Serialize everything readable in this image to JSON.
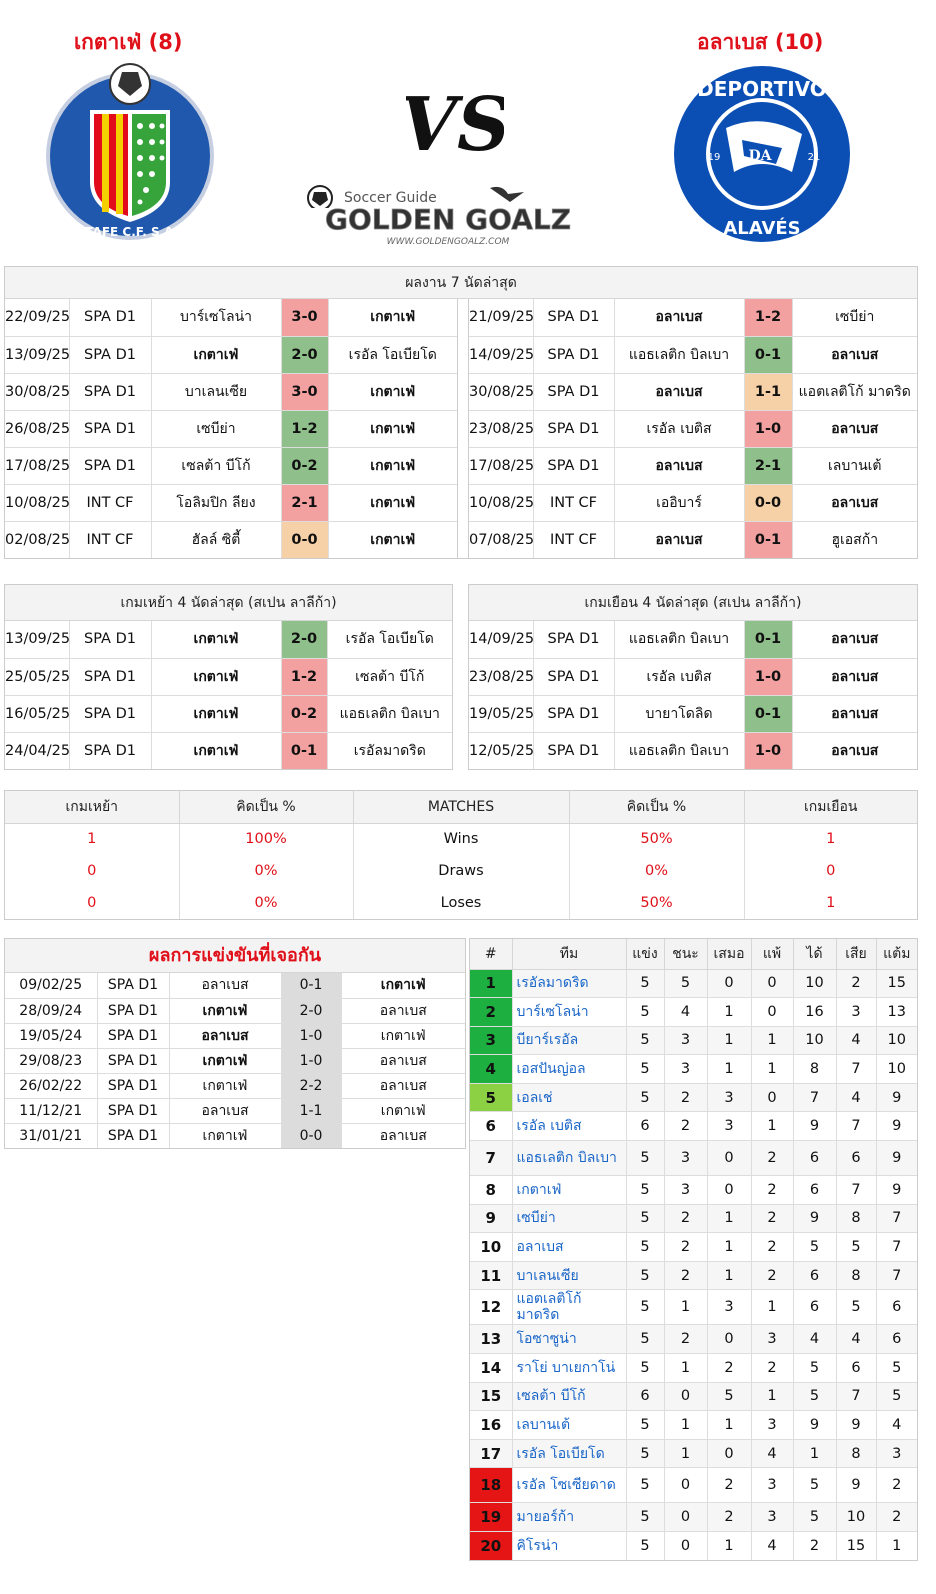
{
  "header": {
    "home_team": "เกตาเฟ่ (8)",
    "away_team": "อลาเบส (10)",
    "vs": "VS",
    "brand_sub": "Soccer Guide",
    "brand_main": "GOLDEN GOALZ",
    "brand_url": "WWW.GOLDENGOALZ.COM",
    "home_logo_text": "GETAFE C.F. S.A.D.",
    "away_logo_top": "DEPORTIVO",
    "away_logo_bottom": "ALAVÉS",
    "away_logo_left": "19",
    "away_logo_right": "21",
    "away_logo_mono": "DA"
  },
  "colors": {
    "win": "#8fbf8a",
    "loss": "#f3a0a0",
    "draw": "#f6d0a6",
    "accent_red": "#e0101a",
    "link_blue": "#1a66c8"
  },
  "last7": {
    "title": "ผลงาน 7 นัดล่าสุด",
    "home": [
      {
        "date": "22/09/25",
        "comp": "SPA D1",
        "t1": "บาร์เซโลน่า",
        "score": "3-0",
        "t2": "เกตาเฟ่",
        "res": "L",
        "b1": false,
        "b2": true
      },
      {
        "date": "13/09/25",
        "comp": "SPA D1",
        "t1": "เกตาเฟ่",
        "score": "2-0",
        "t2": "เรอัล โอเบียโด",
        "res": "W",
        "b1": true,
        "b2": false
      },
      {
        "date": "30/08/25",
        "comp": "SPA D1",
        "t1": "บาเลนเซีย",
        "score": "3-0",
        "t2": "เกตาเฟ่",
        "res": "L",
        "b1": false,
        "b2": true
      },
      {
        "date": "26/08/25",
        "comp": "SPA D1",
        "t1": "เซบีย่า",
        "score": "1-2",
        "t2": "เกตาเฟ่",
        "res": "W",
        "b1": false,
        "b2": true
      },
      {
        "date": "17/08/25",
        "comp": "SPA D1",
        "t1": "เซลต้า บีโก้",
        "score": "0-2",
        "t2": "เกตาเฟ่",
        "res": "W",
        "b1": false,
        "b2": true
      },
      {
        "date": "10/08/25",
        "comp": "INT CF",
        "t1": "โอลิมปิก ลียง",
        "score": "2-1",
        "t2": "เกตาเฟ่",
        "res": "L",
        "b1": false,
        "b2": true
      },
      {
        "date": "02/08/25",
        "comp": "INT CF",
        "t1": "ฮัลล์ ซิตี้",
        "score": "0-0",
        "t2": "เกตาเฟ่",
        "res": "D",
        "b1": false,
        "b2": true
      }
    ],
    "away": [
      {
        "date": "21/09/25",
        "comp": "SPA D1",
        "t1": "อลาเบส",
        "score": "1-2",
        "t2": "เซบีย่า",
        "res": "L",
        "b1": true,
        "b2": false
      },
      {
        "date": "14/09/25",
        "comp": "SPA D1",
        "t1": "แอธเลติก บิลเบา",
        "score": "0-1",
        "t2": "อลาเบส",
        "res": "W",
        "b1": false,
        "b2": true
      },
      {
        "date": "30/08/25",
        "comp": "SPA D1",
        "t1": "อลาเบส",
        "score": "1-1",
        "t2": "แอตเลติโก้ มาดริด",
        "res": "D",
        "b1": true,
        "b2": false
      },
      {
        "date": "23/08/25",
        "comp": "SPA D1",
        "t1": "เรอัล เบติส",
        "score": "1-0",
        "t2": "อลาเบส",
        "res": "L",
        "b1": false,
        "b2": true
      },
      {
        "date": "17/08/25",
        "comp": "SPA D1",
        "t1": "อลาเบส",
        "score": "2-1",
        "t2": "เลบานเต้",
        "res": "W",
        "b1": true,
        "b2": false
      },
      {
        "date": "10/08/25",
        "comp": "INT CF",
        "t1": "เออิบาร์",
        "score": "0-0",
        "t2": "อลาเบส",
        "res": "D",
        "b1": false,
        "b2": true
      },
      {
        "date": "07/08/25",
        "comp": "INT CF",
        "t1": "อลาเบส",
        "score": "0-1",
        "t2": "ฮูเอสก้า",
        "res": "L",
        "b1": true,
        "b2": false
      }
    ]
  },
  "last4": {
    "home_title": "เกมเหย้า 4 นัดล่าสุด (สเปน ลาลีก้า)",
    "away_title": "เกมเยือน 4 นัดล่าสุด (สเปน ลาลีก้า)",
    "home": [
      {
        "date": "13/09/25",
        "comp": "SPA D1",
        "t1": "เกตาเฟ่",
        "score": "2-0",
        "t2": "เรอัล โอเบียโด",
        "res": "W",
        "b1": true,
        "b2": false
      },
      {
        "date": "25/05/25",
        "comp": "SPA D1",
        "t1": "เกตาเฟ่",
        "score": "1-2",
        "t2": "เซลต้า บีโก้",
        "res": "L",
        "b1": true,
        "b2": false
      },
      {
        "date": "16/05/25",
        "comp": "SPA D1",
        "t1": "เกตาเฟ่",
        "score": "0-2",
        "t2": "แอธเลติก บิลเบา",
        "res": "L",
        "b1": true,
        "b2": false
      },
      {
        "date": "24/04/25",
        "comp": "SPA D1",
        "t1": "เกตาเฟ่",
        "score": "0-1",
        "t2": "เรอัลมาดริด",
        "res": "L",
        "b1": true,
        "b2": false
      }
    ],
    "away": [
      {
        "date": "14/09/25",
        "comp": "SPA D1",
        "t1": "แอธเลติก บิลเบา",
        "score": "0-1",
        "t2": "อลาเบส",
        "res": "W",
        "b1": false,
        "b2": true
      },
      {
        "date": "23/08/25",
        "comp": "SPA D1",
        "t1": "เรอัล เบติส",
        "score": "1-0",
        "t2": "อลาเบส",
        "res": "L",
        "b1": false,
        "b2": true
      },
      {
        "date": "19/05/25",
        "comp": "SPA D1",
        "t1": "บายาโดลิด",
        "score": "0-1",
        "t2": "อลาเบส",
        "res": "W",
        "b1": false,
        "b2": true
      },
      {
        "date": "12/05/25",
        "comp": "SPA D1",
        "t1": "แอธเลติก บิลเบา",
        "score": "1-0",
        "t2": "อลาเบส",
        "res": "L",
        "b1": false,
        "b2": true
      }
    ]
  },
  "summary": {
    "headers": [
      "เกมเหย้า",
      "คิดเป็น %",
      "MATCHES",
      "คิดเป็น %",
      "เกมเยือน"
    ],
    "rows": [
      {
        "home": "1",
        "home_pct": "100%",
        "label": "Wins",
        "away_pct": "50%",
        "away": "1"
      },
      {
        "home": "0",
        "home_pct": "0%",
        "label": "Draws",
        "away_pct": "0%",
        "away": "0"
      },
      {
        "home": "0",
        "home_pct": "0%",
        "label": "Loses",
        "away_pct": "50%",
        "away": "1"
      }
    ]
  },
  "h2h": {
    "title": "ผลการแข่งขันที่เจอกัน",
    "rows": [
      {
        "date": "09/02/25",
        "comp": "SPA D1",
        "t1": "อลาเบส",
        "score": "0-1",
        "t2": "เกตาเฟ่",
        "b1": false,
        "b2": true
      },
      {
        "date": "28/09/24",
        "comp": "SPA D1",
        "t1": "เกตาเฟ่",
        "score": "2-0",
        "t2": "อลาเบส",
        "b1": true,
        "b2": false
      },
      {
        "date": "19/05/24",
        "comp": "SPA D1",
        "t1": "อลาเบส",
        "score": "1-0",
        "t2": "เกตาเฟ่",
        "b1": true,
        "b2": false
      },
      {
        "date": "29/08/23",
        "comp": "SPA D1",
        "t1": "เกตาเฟ่",
        "score": "1-0",
        "t2": "อลาเบส",
        "b1": true,
        "b2": false
      },
      {
        "date": "26/02/22",
        "comp": "SPA D1",
        "t1": "เกตาเฟ่",
        "score": "2-2",
        "t2": "อลาเบส",
        "b1": false,
        "b2": false
      },
      {
        "date": "11/12/21",
        "comp": "SPA D1",
        "t1": "อลาเบส",
        "score": "1-1",
        "t2": "เกตาเฟ่",
        "b1": false,
        "b2": false
      },
      {
        "date": "31/01/21",
        "comp": "SPA D1",
        "t1": "เกตาเฟ่",
        "score": "0-0",
        "t2": "อลาเบส",
        "b1": false,
        "b2": false
      }
    ]
  },
  "standings": {
    "headers": [
      "#",
      "ทีม",
      "แข่ง",
      "ชนะ",
      "เสมอ",
      "แพ้",
      "ได้",
      "เสีย",
      "แต้ม"
    ],
    "rows": [
      {
        "pos": "1",
        "team": "เรอัลมาดริด",
        "p": "5",
        "w": "5",
        "d": "0",
        "l": "0",
        "gf": "10",
        "ga": "2",
        "pts": "15",
        "zone": "g1"
      },
      {
        "pos": "2",
        "team": "บาร์เซโลน่า",
        "p": "5",
        "w": "4",
        "d": "1",
        "l": "0",
        "gf": "16",
        "ga": "3",
        "pts": "13",
        "zone": "g1"
      },
      {
        "pos": "3",
        "team": "บียาร์เรอัล",
        "p": "5",
        "w": "3",
        "d": "1",
        "l": "1",
        "gf": "10",
        "ga": "4",
        "pts": "10",
        "zone": "g1"
      },
      {
        "pos": "4",
        "team": "เอสปันญ่อล",
        "p": "5",
        "w": "3",
        "d": "1",
        "l": "1",
        "gf": "8",
        "ga": "7",
        "pts": "10",
        "zone": "g1"
      },
      {
        "pos": "5",
        "team": "เอลเช่",
        "p": "5",
        "w": "2",
        "d": "3",
        "l": "0",
        "gf": "7",
        "ga": "4",
        "pts": "9",
        "zone": "g2"
      },
      {
        "pos": "6",
        "team": "เรอัล เบติส",
        "p": "6",
        "w": "2",
        "d": "3",
        "l": "1",
        "gf": "9",
        "ga": "7",
        "pts": "9",
        "zone": ""
      },
      {
        "pos": "7",
        "team": "แอธเลติก บิลเบา",
        "p": "5",
        "w": "3",
        "d": "0",
        "l": "2",
        "gf": "6",
        "ga": "6",
        "pts": "9",
        "zone": ""
      },
      {
        "pos": "8",
        "team": "เกตาเฟ่",
        "p": "5",
        "w": "3",
        "d": "0",
        "l": "2",
        "gf": "6",
        "ga": "7",
        "pts": "9",
        "zone": ""
      },
      {
        "pos": "9",
        "team": "เซบีย่า",
        "p": "5",
        "w": "2",
        "d": "1",
        "l": "2",
        "gf": "9",
        "ga": "8",
        "pts": "7",
        "zone": ""
      },
      {
        "pos": "10",
        "team": "อลาเบส",
        "p": "5",
        "w": "2",
        "d": "1",
        "l": "2",
        "gf": "5",
        "ga": "5",
        "pts": "7",
        "zone": ""
      },
      {
        "pos": "11",
        "team": "บาเลนเซีย",
        "p": "5",
        "w": "2",
        "d": "1",
        "l": "2",
        "gf": "6",
        "ga": "8",
        "pts": "7",
        "zone": ""
      },
      {
        "pos": "12",
        "team": "แอตเลติโก้ มาดริด",
        "p": "5",
        "w": "1",
        "d": "3",
        "l": "1",
        "gf": "6",
        "ga": "5",
        "pts": "6",
        "zone": ""
      },
      {
        "pos": "13",
        "team": "โอซาซูน่า",
        "p": "5",
        "w": "2",
        "d": "0",
        "l": "3",
        "gf": "4",
        "ga": "4",
        "pts": "6",
        "zone": ""
      },
      {
        "pos": "14",
        "team": "ราโย่ บาเยกาโน่",
        "p": "5",
        "w": "1",
        "d": "2",
        "l": "2",
        "gf": "5",
        "ga": "6",
        "pts": "5",
        "zone": ""
      },
      {
        "pos": "15",
        "team": "เซลต้า บีโก้",
        "p": "6",
        "w": "0",
        "d": "5",
        "l": "1",
        "gf": "5",
        "ga": "7",
        "pts": "5",
        "zone": ""
      },
      {
        "pos": "16",
        "team": "เลบานเต้",
        "p": "5",
        "w": "1",
        "d": "1",
        "l": "3",
        "gf": "9",
        "ga": "9",
        "pts": "4",
        "zone": ""
      },
      {
        "pos": "17",
        "team": "เรอัล โอเบียโด",
        "p": "5",
        "w": "1",
        "d": "0",
        "l": "4",
        "gf": "1",
        "ga": "8",
        "pts": "3",
        "zone": ""
      },
      {
        "pos": "18",
        "team": "เรอัล โซเซียดาด",
        "p": "5",
        "w": "0",
        "d": "2",
        "l": "3",
        "gf": "5",
        "ga": "9",
        "pts": "2",
        "zone": "r"
      },
      {
        "pos": "19",
        "team": "มายอร์ก้า",
        "p": "5",
        "w": "0",
        "d": "2",
        "l": "3",
        "gf": "5",
        "ga": "10",
        "pts": "2",
        "zone": "r"
      },
      {
        "pos": "20",
        "team": "คิโรน่า",
        "p": "5",
        "w": "0",
        "d": "1",
        "l": "4",
        "gf": "2",
        "ga": "15",
        "pts": "1",
        "zone": "r"
      }
    ]
  }
}
